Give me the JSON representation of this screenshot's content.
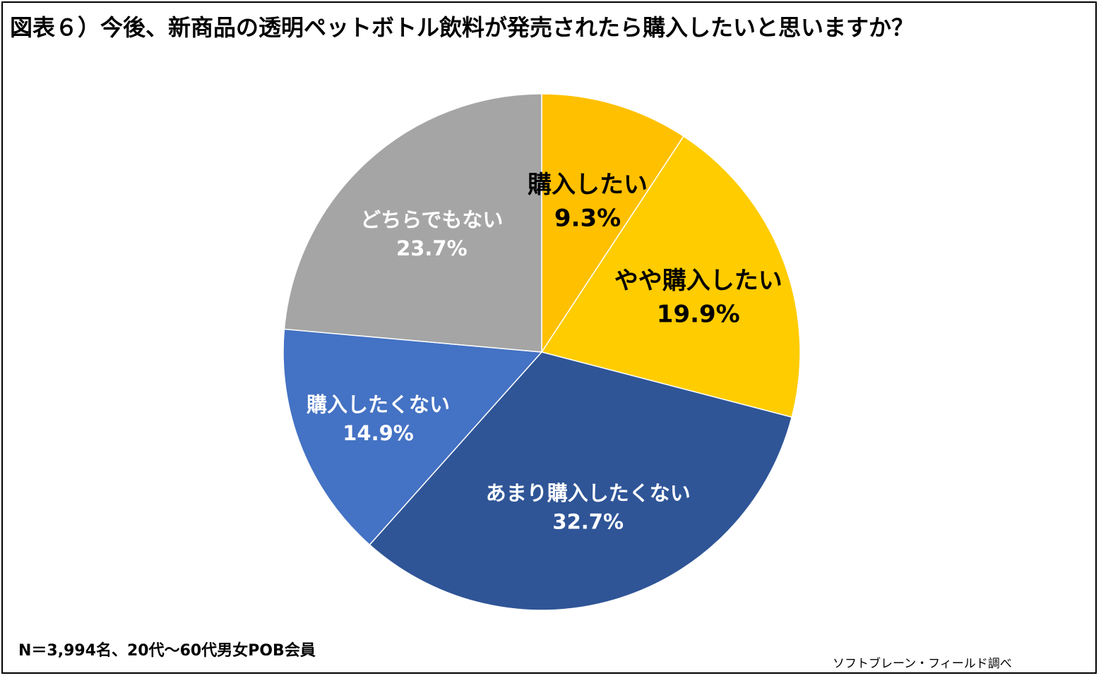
{
  "title": "図表６）今後、新商品の透明ペットボトル飲料が発売されたら購入したいと思いますか？",
  "note": "N＝3,994名、20代～60代男女POB会員",
  "source": "ソフトブレーン・フィールド調べ",
  "chart_data": {
    "type": "pie",
    "title": "図表６）今後、新商品の透明ペットボトル飲料が発売されたら購入したいと思いますか？",
    "slices": [
      {
        "label": "購入したい",
        "value": 9.3,
        "value_label": "9.3%",
        "color": "#FFC000",
        "text_color": "#000000"
      },
      {
        "label": "やや購入したい",
        "value": 19.9,
        "value_label": "19.9%",
        "color": "#FFCC00",
        "text_color": "#000000"
      },
      {
        "label": "あまり購入したくない",
        "value": 32.7,
        "value_label": "32.7%",
        "color": "#2F5597",
        "text_color": "#FFFFFF"
      },
      {
        "label": "購入したくない",
        "value": 14.9,
        "value_label": "14.9%",
        "color": "#4472C4",
        "text_color": "#FFFFFF"
      },
      {
        "label": "どちらでもない",
        "value": 23.7,
        "value_label": "23.7%",
        "color": "#A5A5A5",
        "text_color": "#FFFFFF"
      }
    ],
    "start": "12 o'clock",
    "direction": "clockwise",
    "legend": "none"
  }
}
